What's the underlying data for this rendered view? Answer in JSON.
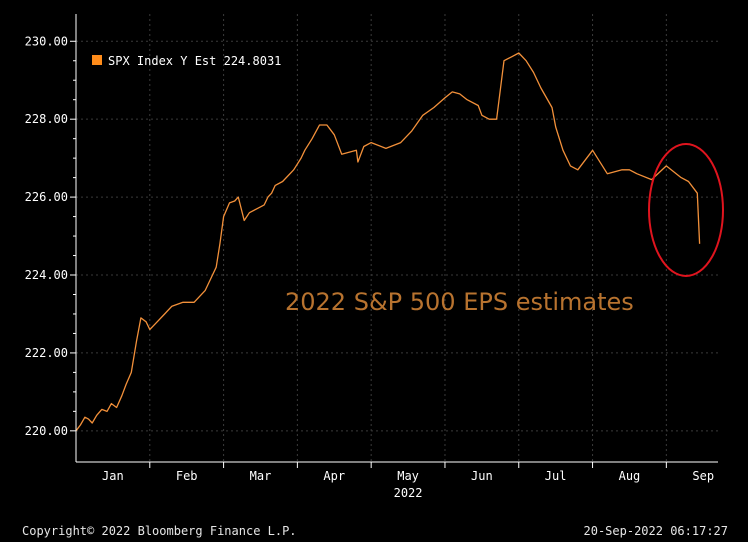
{
  "chart_data": {
    "type": "line",
    "title": "2022 S&P 500 EPS estimates",
    "xlabel": "",
    "ylabel": "",
    "legend": {
      "label": "SPX Index Y Est 224.8031",
      "placement": "top-left"
    },
    "ylim": [
      219.2,
      230.7
    ],
    "y_ticks": [
      220,
      222,
      224,
      226,
      228,
      230
    ],
    "y_tick_labels": [
      "220.00",
      "222.00",
      "224.00",
      "226.00",
      "228.00",
      "230.00"
    ],
    "x_tick_labels": [
      "Jan",
      "Feb",
      "Mar",
      "Apr",
      "May",
      "Jun",
      "Jul",
      "Aug",
      "Sep"
    ],
    "x_sublabel": "2022",
    "xlim": [
      0,
      8.7
    ],
    "grid": true,
    "annotation": "ellipse highlighting September drop",
    "series": [
      {
        "name": "SPX Index Y Est",
        "last": 224.8031,
        "x": [
          0.0,
          0.06,
          0.12,
          0.17,
          0.22,
          0.28,
          0.35,
          0.42,
          0.48,
          0.55,
          0.62,
          0.68,
          0.75,
          0.82,
          0.88,
          0.95,
          1.0,
          1.05,
          1.1,
          1.2,
          1.3,
          1.45,
          1.6,
          1.75,
          1.85,
          1.9,
          1.95,
          2.0,
          2.08,
          2.15,
          2.2,
          2.28,
          2.35,
          2.45,
          2.55,
          2.6,
          2.65,
          2.7,
          2.8,
          2.95,
          3.05,
          3.1,
          3.2,
          3.3,
          3.4,
          3.5,
          3.6,
          3.7,
          3.8,
          3.82,
          3.9,
          4.0,
          4.2,
          4.4,
          4.55,
          4.7,
          4.85,
          5.0,
          5.1,
          5.2,
          5.3,
          5.45,
          5.5,
          5.6,
          5.7,
          5.8,
          5.9,
          6.0,
          6.1,
          6.2,
          6.3,
          6.45,
          6.5,
          6.6,
          6.7,
          6.8,
          7.0,
          7.2,
          7.4,
          7.5,
          7.6,
          7.8,
          8.0,
          8.2,
          8.3,
          8.38,
          8.42,
          8.45
        ],
        "values": [
          220.0,
          220.15,
          220.35,
          220.3,
          220.2,
          220.4,
          220.55,
          220.5,
          220.7,
          220.6,
          220.9,
          221.2,
          221.5,
          222.3,
          222.9,
          222.8,
          222.6,
          222.7,
          222.8,
          223.0,
          223.2,
          223.3,
          223.3,
          223.6,
          224.0,
          224.2,
          224.8,
          225.5,
          225.85,
          225.9,
          226.0,
          225.4,
          225.6,
          225.7,
          225.8,
          226.0,
          226.1,
          226.3,
          226.4,
          226.7,
          227.0,
          227.2,
          227.5,
          227.85,
          227.85,
          227.6,
          227.1,
          227.15,
          227.2,
          226.9,
          227.3,
          227.4,
          227.25,
          227.4,
          227.7,
          228.1,
          228.3,
          228.55,
          228.7,
          228.65,
          228.5,
          228.35,
          228.1,
          228.0,
          228.0,
          229.5,
          229.6,
          229.7,
          229.5,
          229.2,
          228.8,
          228.3,
          227.8,
          227.2,
          226.8,
          226.7,
          227.2,
          226.6,
          226.7,
          226.7,
          226.6,
          226.45,
          226.8,
          226.5,
          226.4,
          226.2,
          226.1,
          224.8
        ]
      }
    ],
    "colors": {
      "line": "#f2903a",
      "legend_swatch": "#ff8c1a",
      "title": "#b8732f",
      "ellipse": "#e0141e",
      "background": "#000000",
      "grid": "#3a3a3a",
      "axis": "#ffffff",
      "text": "#e6e6e6"
    }
  },
  "footer": {
    "copyright": "Copyright© 2022 Bloomberg Finance L.P.",
    "timestamp": "20-Sep-2022 06:17:27"
  }
}
